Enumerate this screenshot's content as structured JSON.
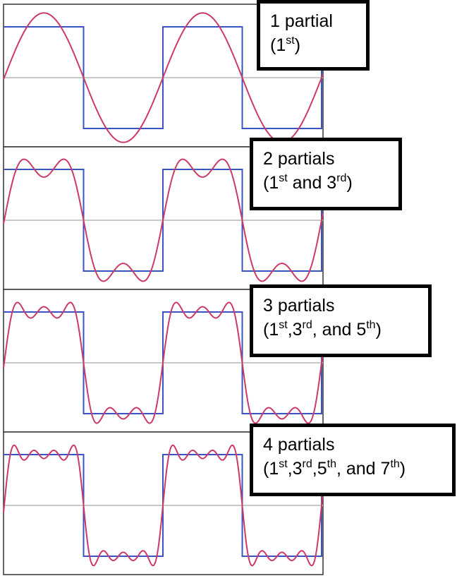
{
  "colors": {
    "square_wave": "#3a54c4",
    "approximation": "#cc3a68",
    "zero_line": "#c8c8c8",
    "frame": "#333333"
  },
  "panels": [
    {
      "harmonics": [
        1
      ],
      "label": {
        "title": "1 partial",
        "detail": [
          {
            "t": "(1"
          },
          {
            "s": "st"
          },
          {
            "t": ")"
          }
        ]
      }
    },
    {
      "harmonics": [
        1,
        3
      ],
      "label": {
        "title": "2 partials",
        "detail": [
          {
            "t": "(1"
          },
          {
            "s": "st"
          },
          {
            "t": " and 3"
          },
          {
            "s": "rd"
          },
          {
            "t": ")"
          }
        ]
      }
    },
    {
      "harmonics": [
        1,
        3,
        5
      ],
      "label": {
        "title": "3 partials",
        "detail": [
          {
            "t": "(1"
          },
          {
            "s": "st"
          },
          {
            "t": ",3"
          },
          {
            "s": "rd"
          },
          {
            "t": ", and 5"
          },
          {
            "s": "th"
          },
          {
            "t": ")"
          }
        ]
      }
    },
    {
      "harmonics": [
        1,
        3,
        5,
        7
      ],
      "label": {
        "title": "4 partials",
        "detail": [
          {
            "t": "(1"
          },
          {
            "s": "st"
          },
          {
            "t": ",3"
          },
          {
            "s": "rd"
          },
          {
            "t": ",5"
          },
          {
            "s": "th"
          },
          {
            "t": ", and 7"
          },
          {
            "s": "th"
          },
          {
            "t": ")"
          }
        ]
      }
    }
  ]
}
